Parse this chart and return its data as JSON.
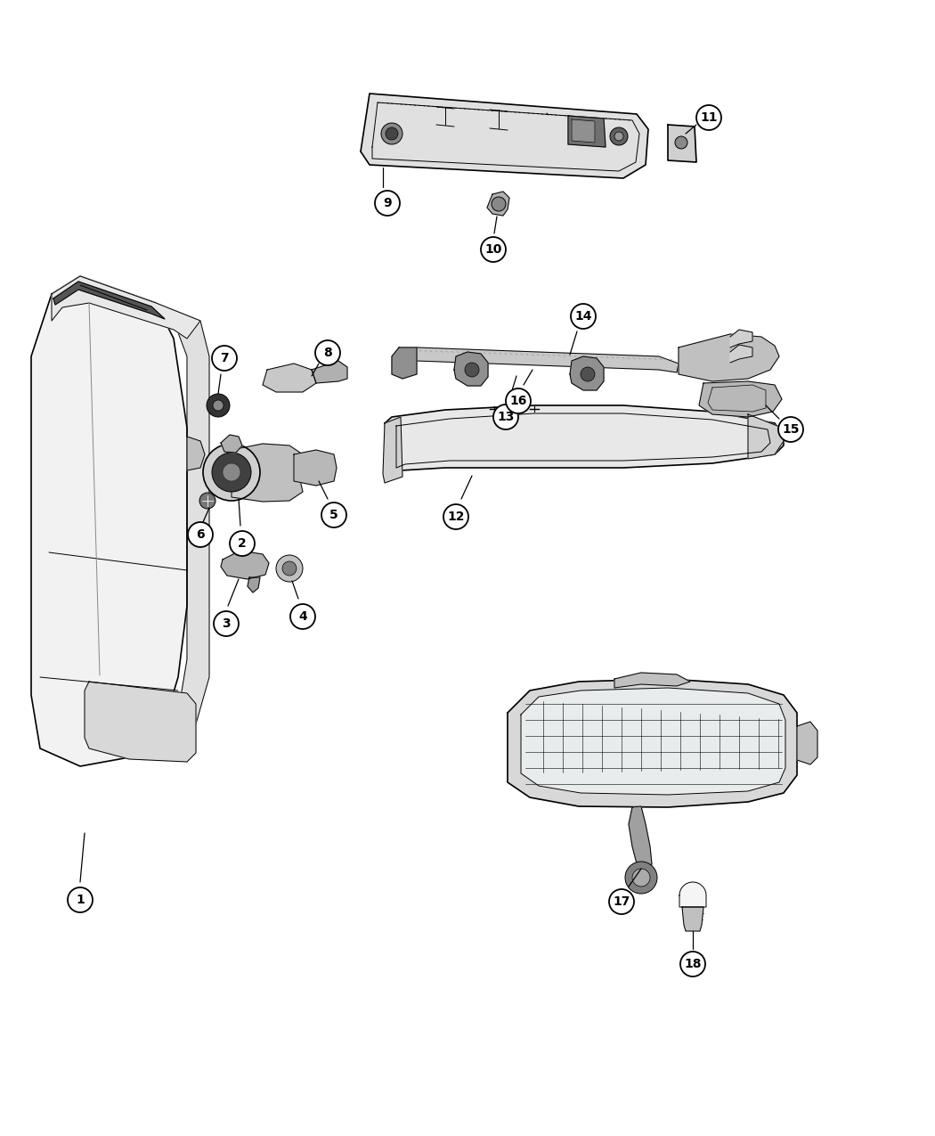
{
  "background_color": "#ffffff",
  "line_color": "#000000",
  "fig_width": 10.5,
  "fig_height": 12.75,
  "dpi": 100
}
